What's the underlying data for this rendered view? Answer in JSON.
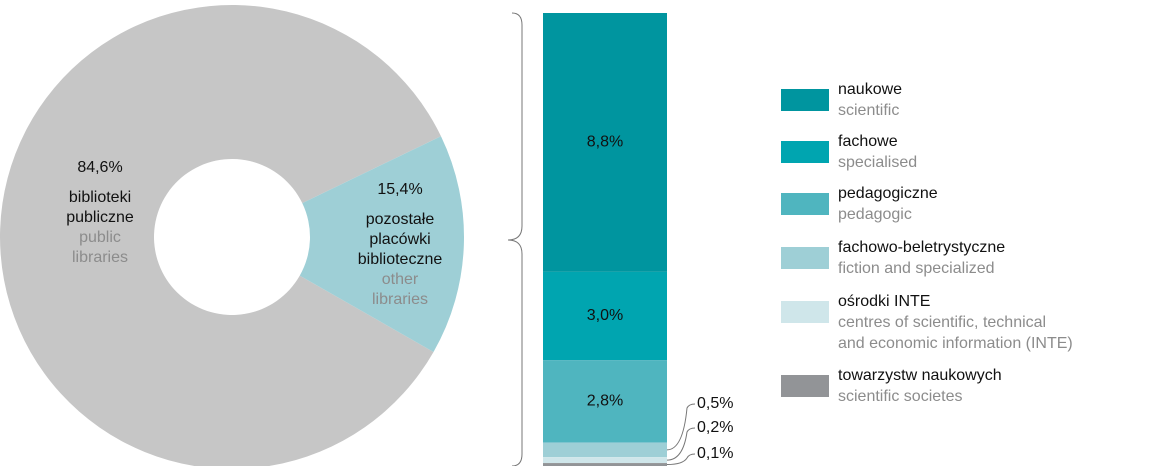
{
  "chart_data": [
    {
      "type": "pie",
      "categories": [
        [
          "biblioteki",
          "publiczne"
        ],
        [
          "pozostałe",
          "placówki",
          "biblioteczne"
        ]
      ],
      "translations": [
        [
          "public",
          "libraries"
        ],
        [
          "other",
          "libraries"
        ]
      ],
      "values": [
        84.6,
        15.4
      ],
      "value_labels": [
        "84,6%",
        "15,4%"
      ],
      "colors": [
        "#c6c6c6",
        "#9ecfd6"
      ],
      "donut": true
    },
    {
      "type": "bar",
      "stacked": true,
      "series": [
        {
          "name": "naukowe",
          "translation": [
            "scientific"
          ],
          "color": "#00959f",
          "values": [
            8.8
          ],
          "value_labels": [
            "8,8%"
          ]
        },
        {
          "name": "fachowe",
          "translation": [
            "specialised"
          ],
          "color": "#00a5b0",
          "values": [
            3.0
          ],
          "value_labels": [
            "3,0%"
          ]
        },
        {
          "name": "pedagogiczne",
          "translation": [
            "pedagogic"
          ],
          "color": "#4fb5bf",
          "values": [
            2.8
          ],
          "value_labels": [
            "2,8%"
          ]
        },
        {
          "name": "fachowo-beletrystyczne",
          "translation": [
            "fiction and specialized"
          ],
          "color": "#9ecfd6",
          "values": [
            0.5
          ],
          "value_labels": [
            "0,5%"
          ]
        },
        {
          "name": "ośrodki INTE",
          "translation": [
            "centres of scientific, technical",
            "and economic information (INTE)"
          ],
          "color": "#cfe6ea",
          "values": [
            0.2
          ],
          "value_labels": [
            "0,2%"
          ]
        },
        {
          "name": "towarzystw naukowych",
          "translation": [
            "scientific societes"
          ],
          "color": "#929497",
          "values": [
            0.1
          ],
          "value_labels": [
            "0,1%"
          ]
        }
      ]
    }
  ]
}
